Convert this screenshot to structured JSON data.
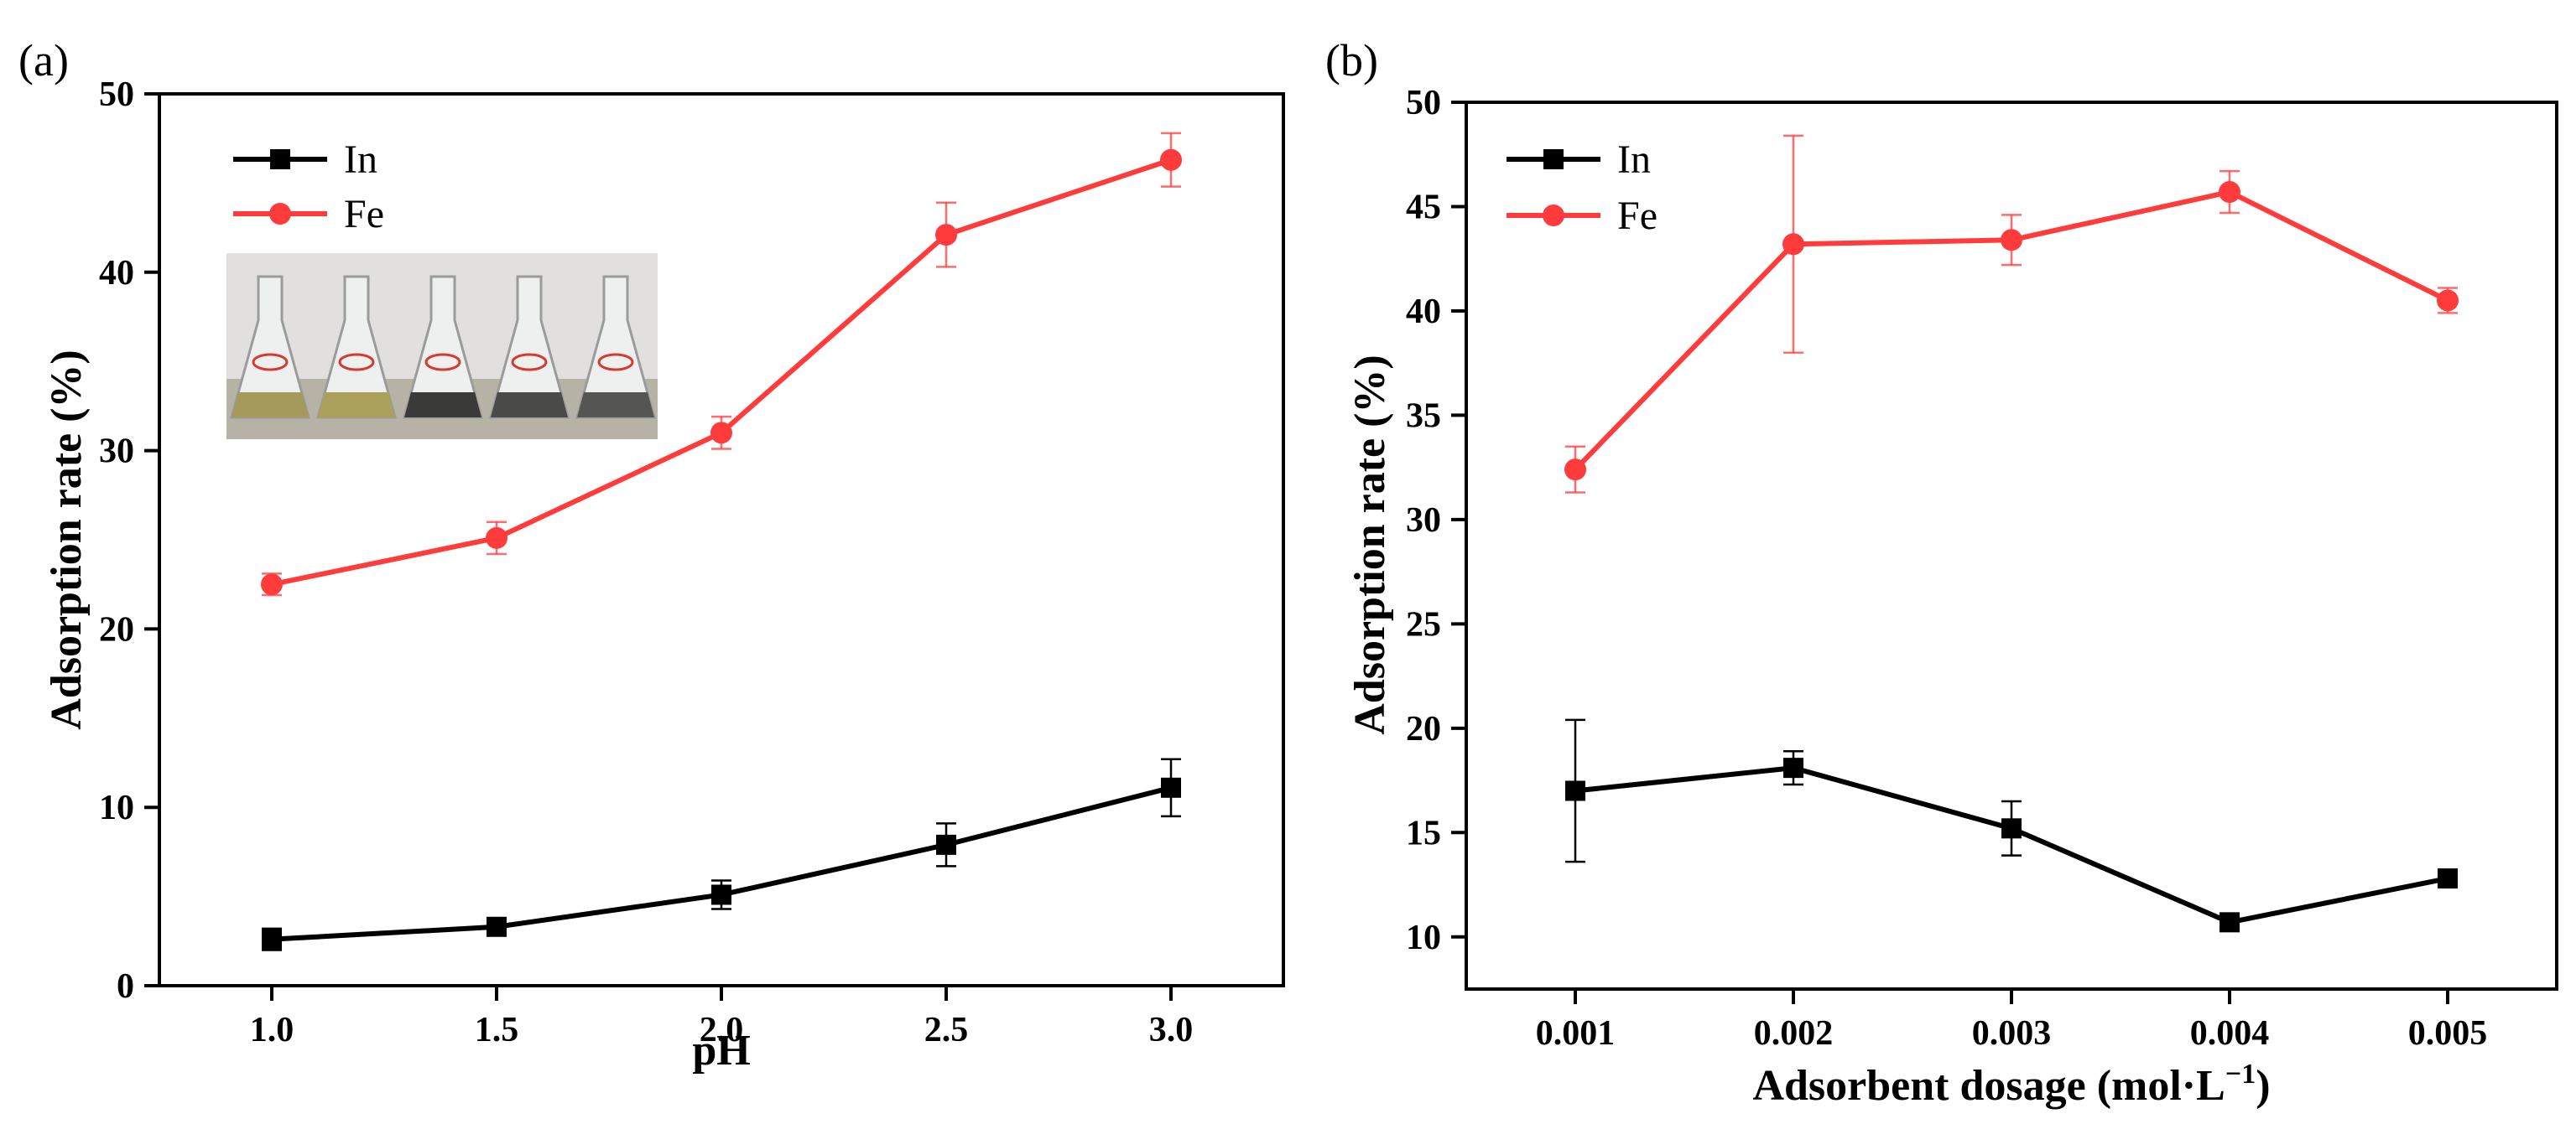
{
  "colors": {
    "In": "#000000",
    "Fe": "#ff3b3b"
  },
  "chart_data": [
    {
      "panel": "(a)",
      "type": "line",
      "xlabel": "pH",
      "ylabel": "Adsorption rate (%)",
      "xlim": [
        0.75,
        3.25
      ],
      "ylim": [
        0,
        50
      ],
      "xticks": [
        "1.0",
        "1.5",
        "2.0",
        "2.5",
        "3.0"
      ],
      "yticks": [
        "0",
        "10",
        "20",
        "30",
        "40",
        "50"
      ],
      "x": [
        1.0,
        1.5,
        2.0,
        2.5,
        3.0
      ],
      "series": [
        {
          "name": "In",
          "values": [
            2.6,
            3.3,
            5.1,
            7.9,
            11.1
          ],
          "errors": [
            0.6,
            0.4,
            0.8,
            1.2,
            1.6
          ]
        },
        {
          "name": "Fe",
          "values": [
            22.5,
            25.1,
            31.0,
            42.1,
            46.3
          ],
          "errors": [
            0.6,
            0.9,
            0.9,
            1.8,
            1.5
          ]
        }
      ],
      "legend": [
        "In",
        "Fe"
      ],
      "legend_position": "top-left",
      "inset_description": "flasks"
    },
    {
      "panel": "(b)",
      "type": "line",
      "xlabel": "Adsorbent dosage (mol·L",
      "xlabel_sup": "−1",
      "xlabel_end": ")",
      "ylabel": "Adsorption rate (%)",
      "xlim": [
        0.0005,
        0.0055
      ],
      "ylim": [
        7.5,
        50
      ],
      "xticks": [
        "0.001",
        "0.002",
        "0.003",
        "0.004",
        "0.005"
      ],
      "yticks": [
        "10",
        "15",
        "20",
        "25",
        "30",
        "35",
        "40",
        "45",
        "50"
      ],
      "x": [
        0.001,
        0.002,
        0.003,
        0.004,
        0.005
      ],
      "series": [
        {
          "name": "In",
          "values": [
            17.0,
            18.1,
            15.2,
            10.7,
            12.8
          ],
          "errors": [
            3.4,
            0.8,
            1.3,
            0.3,
            0.4
          ]
        },
        {
          "name": "Fe",
          "values": [
            32.4,
            43.2,
            43.4,
            45.7,
            40.5
          ],
          "errors": [
            1.1,
            5.2,
            1.2,
            1.0,
            0.6
          ]
        }
      ],
      "legend": [
        "In",
        "Fe"
      ],
      "legend_position": "top-left"
    }
  ]
}
